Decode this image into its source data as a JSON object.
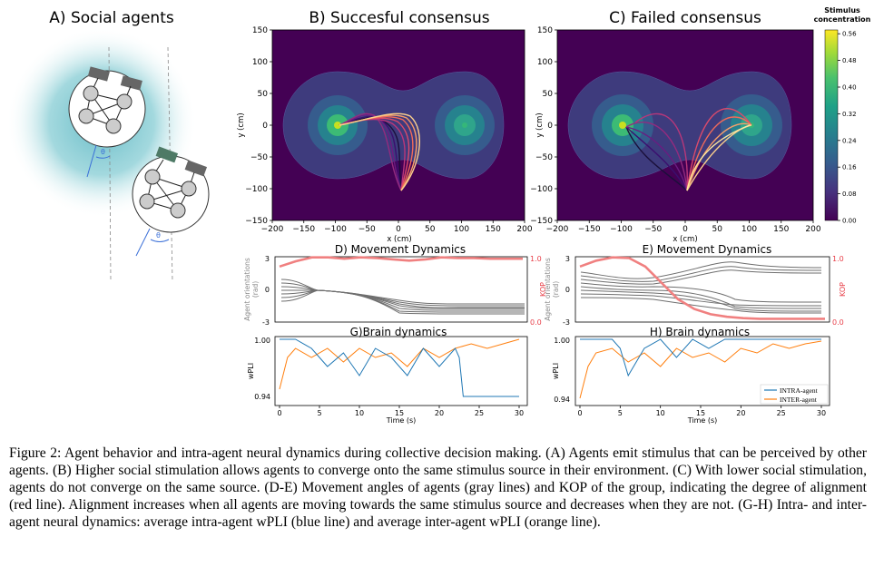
{
  "panels": {
    "A": {
      "title": "A) Social agents",
      "theta": "θ"
    },
    "B": {
      "title": "B) Succesful consensus",
      "xlabel": "x (cm)",
      "ylabel": "y (cm)"
    },
    "C": {
      "title": "C) Failed consensus",
      "xlabel": "x (cm)",
      "ylabel": "y (cm)"
    },
    "colorbar": {
      "title_line1": "Stimulus",
      "title_line2": "concentration",
      "ticks": [
        "0.00",
        "0.08",
        "0.16",
        "0.24",
        "0.32",
        "0.40",
        "0.48",
        "0.56"
      ]
    },
    "D": {
      "title": "D) Movement Dynamics",
      "ylabel_line1": "Agent orientations",
      "ylabel_line2": "(rad)",
      "ylabel_right": "KOP"
    },
    "E": {
      "title": "E) Movement Dynamics",
      "ylabel_line1": "Agent orientations",
      "ylabel_line2": "(rad)",
      "ylabel_right": "KOP"
    },
    "G": {
      "title": "G)Brain dynamics",
      "xlabel": "Time (s)",
      "ylabel": "wPLI"
    },
    "H": {
      "title": "H) Brain dynamics",
      "xlabel": "Time (s)",
      "ylabel": "wPLI",
      "legend": [
        "INTRA-agent",
        "INTER-agent"
      ]
    }
  },
  "colors": {
    "field_low": "#440154",
    "field_mid": "#3b528b",
    "field_ring2": "#21918c",
    "field_ring3": "#35b779",
    "field_peak": "#90d743",
    "kop": "#f08080",
    "orientation": "#6e6e6e",
    "intra": "#1f77b4",
    "inter": "#ff7f0e",
    "kop_axis": "#e8404a"
  },
  "chart_data": [
    {
      "type": "heatmap",
      "panel": "B",
      "title": "B) Succesful consensus",
      "xlabel": "x (cm)",
      "ylabel": "y (cm)",
      "xlim": [
        -200,
        200
      ],
      "ylim": [
        -150,
        150
      ],
      "xticks": [
        "−200",
        "−150",
        "−100",
        "−50",
        "0",
        "50",
        "100",
        "150",
        "200"
      ],
      "yticks": [
        "150",
        "100",
        "50",
        "0",
        "−50",
        "−100",
        "−150"
      ],
      "sources": [
        [
          -100,
          0
        ],
        [
          100,
          0
        ]
      ],
      "agent_start": [
        0,
        -100
      ]
    },
    {
      "type": "heatmap",
      "panel": "C",
      "title": "C) Failed consensus",
      "xlabel": "x (cm)",
      "ylabel": "y (cm)",
      "xlim": [
        -200,
        200
      ],
      "ylim": [
        -150,
        150
      ],
      "xticks": [
        "−200",
        "−150",
        "−100",
        "−50",
        "0",
        "50",
        "100",
        "150",
        "200"
      ],
      "yticks": [
        "150",
        "100",
        "50",
        "0",
        "−50",
        "−100",
        "−150"
      ],
      "sources": [
        [
          -100,
          0
        ],
        [
          100,
          0
        ]
      ],
      "agent_start": [
        0,
        -100
      ]
    },
    {
      "type": "line",
      "panel": "D",
      "title": "D) Movement Dynamics",
      "ylabel": "Agent orientations (rad)",
      "ylabel_right": "KOP",
      "ylim": [
        -3,
        3
      ],
      "ylim_right": [
        0.0,
        1.0
      ],
      "yticks": [
        "3",
        "0",
        "-3"
      ],
      "yticks_right": [
        "1.0",
        "0.0"
      ],
      "kop": {
        "name": "KOP",
        "x": [
          0,
          2,
          4,
          6,
          8,
          10,
          12,
          14,
          16,
          18,
          20,
          22,
          24,
          26,
          28,
          30
        ],
        "values": [
          0.85,
          0.93,
          0.99,
          0.99,
          0.97,
          0.99,
          0.98,
          0.96,
          0.94,
          0.96,
          0.99,
          0.98,
          0.98,
          0.97,
          0.97,
          0.97
        ]
      }
    },
    {
      "type": "line",
      "panel": "E",
      "title": "E) Movement Dynamics",
      "ylabel": "Agent orientations (rad)",
      "ylabel_right": "KOP",
      "ylim": [
        -3,
        3
      ],
      "ylim_right": [
        0.0,
        1.0
      ],
      "yticks": [
        "3",
        "0",
        "-3"
      ],
      "yticks_right": [
        "1.0",
        "0.0"
      ],
      "kop": {
        "name": "KOP",
        "x": [
          0,
          2,
          4,
          6,
          8,
          10,
          12,
          14,
          16,
          18,
          20,
          22,
          24,
          26,
          28,
          30
        ],
        "values": [
          0.85,
          0.94,
          0.99,
          0.98,
          0.85,
          0.6,
          0.35,
          0.2,
          0.12,
          0.08,
          0.06,
          0.05,
          0.05,
          0.05,
          0.05,
          0.05
        ]
      }
    },
    {
      "type": "line",
      "panel": "G",
      "title": "G)Brain dynamics",
      "xlabel": "Time (s)",
      "ylabel": "wPLI",
      "xlim": [
        0,
        30
      ],
      "ylim": [
        0.93,
        1.0
      ],
      "xticks": [
        "0",
        "5",
        "10",
        "15",
        "20",
        "25",
        "30"
      ],
      "yticks": [
        "1.00",
        "0.94"
      ],
      "series": [
        {
          "name": "INTRA-agent",
          "x": [
            0,
            2,
            4,
            6,
            8,
            10,
            12,
            14,
            16,
            18,
            20,
            22,
            22.5,
            23,
            24,
            26,
            28,
            30
          ],
          "values": [
            1.0,
            1.0,
            0.99,
            0.97,
            0.985,
            0.96,
            0.99,
            0.98,
            0.96,
            0.99,
            0.97,
            0.99,
            0.98,
            0.937,
            0.937,
            0.937,
            0.937,
            0.937
          ]
        },
        {
          "name": "INTER-agent",
          "x": [
            0,
            1,
            2,
            4,
            6,
            8,
            10,
            12,
            14,
            16,
            18,
            20,
            22,
            24,
            26,
            28,
            30
          ],
          "values": [
            0.945,
            0.98,
            0.99,
            0.98,
            0.99,
            0.975,
            0.99,
            0.98,
            0.985,
            0.97,
            0.99,
            0.98,
            0.99,
            0.995,
            0.99,
            0.995,
            1.0
          ]
        }
      ]
    },
    {
      "type": "line",
      "panel": "H",
      "title": "H) Brain dynamics",
      "xlabel": "Time (s)",
      "ylabel": "wPLI",
      "xlim": [
        0,
        30
      ],
      "ylim": [
        0.93,
        1.0
      ],
      "xticks": [
        "0",
        "5",
        "10",
        "15",
        "20",
        "25",
        "30"
      ],
      "yticks": [
        "1.00",
        "0.94"
      ],
      "legend": "bottom-right",
      "series": [
        {
          "name": "INTRA-agent",
          "x": [
            0,
            4,
            5,
            6,
            8,
            10,
            12,
            14,
            16,
            18,
            20,
            22,
            24,
            26,
            28,
            30
          ],
          "values": [
            1.0,
            1.0,
            0.99,
            0.96,
            0.99,
            1.0,
            0.98,
            1.0,
            0.99,
            1.0,
            1.0,
            1.0,
            1.0,
            1.0,
            1.0,
            1.0
          ]
        },
        {
          "name": "INTER-agent",
          "x": [
            0,
            1,
            2,
            4,
            6,
            8,
            10,
            12,
            14,
            16,
            18,
            20,
            22,
            24,
            26,
            28,
            30
          ],
          "values": [
            0.935,
            0.97,
            0.985,
            0.99,
            0.975,
            0.985,
            0.97,
            0.99,
            0.98,
            0.985,
            0.975,
            0.99,
            0.985,
            0.995,
            0.99,
            0.995,
            0.998
          ]
        }
      ]
    }
  ],
  "caption": {
    "label": "Figure 2:",
    "text": "Agent behavior and intra-agent neural dynamics during collective decision making. (A) Agents emit stimulus that can be perceived by other agents. (B) Higher social stimulation allows agents to converge onto the same stimulus source in their environment. (C) With lower social stimulation, agents do not converge on the same source. (D-E) Movement angles of agents (gray lines) and KOP of the group, indicating the degree of alignment (red line). Alignment increases when all agents are moving towards the same stimulus source and decreases when they are not. (G-H) Intra- and inter-agent neural dynamics: average intra-agent wPLI (blue line) and average inter-agent wPLI (orange line)."
  }
}
